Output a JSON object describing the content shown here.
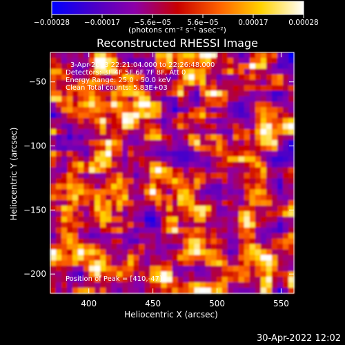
{
  "chart_data": {
    "type": "heatmap",
    "title": "Reconstructed RHESSI Image",
    "xlabel": "Heliocentric X (arcsec)",
    "ylabel": "Heliocentric Y (arcsec)",
    "xlim": [
      370,
      560
    ],
    "ylim": [
      -215,
      -27
    ],
    "x_ticks": [
      400,
      450,
      500,
      550
    ],
    "y_ticks": [
      -50,
      -100,
      -150,
      -200
    ],
    "colorbar": {
      "range": [
        -0.00028,
        0.00028
      ],
      "tick_labels": [
        "-0.00028",
        "-0.00017",
        "-5.6e-05",
        "5.6e-05",
        "0.00017",
        "0.00028"
      ],
      "label": "(photons cm⁻² s⁻¹ asec⁻²)",
      "colormap": [
        "#0000ff",
        "#4b00c8",
        "#8d00a8",
        "#c80000",
        "#ff6400",
        "#ffd200",
        "#ffffff"
      ]
    },
    "annotations": [
      "3-Apr-2003 22:21:04.000 to 22:26:48.000",
      "Detectors: 3F 4F 5F 6F 7F 8F, Att 0",
      "Energy Range: 25.0 - 50.0 keV",
      "Clean     Total counts: 5.83E+03",
      "Position of Peak = [410,-47]"
    ],
    "peak": {
      "x": 410,
      "y": -47
    },
    "grid": false
  },
  "footer": {
    "timestamp": "30-Apr-2022 12:02"
  }
}
